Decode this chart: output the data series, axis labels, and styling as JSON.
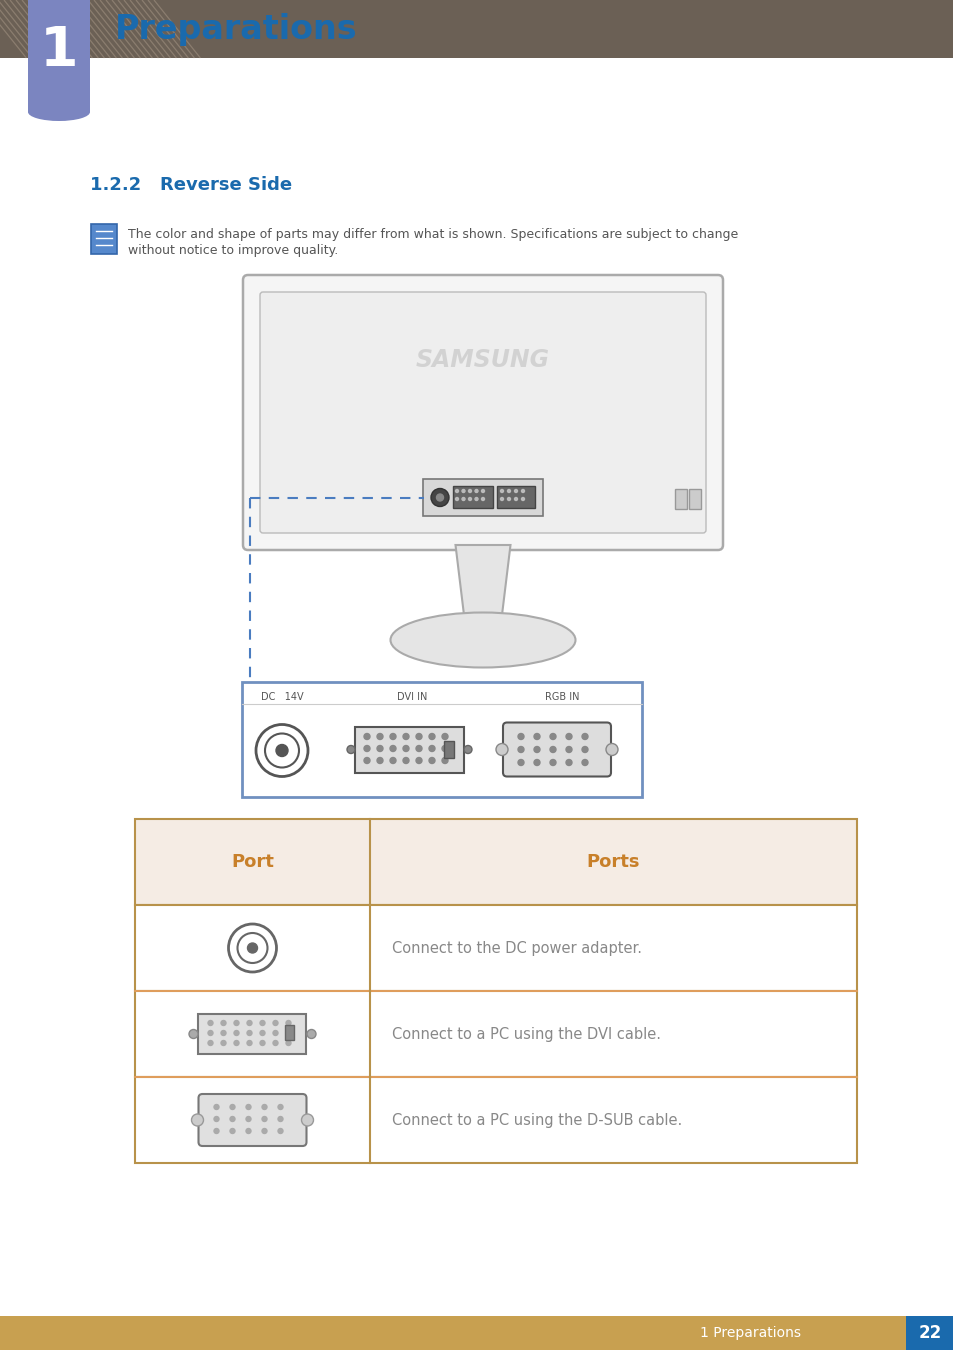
{
  "title": "Preparations",
  "chapter_num": "1",
  "section_title": "1.2.2   Reverse Side",
  "note_text_line1": "The color and shape of parts may differ from what is shown. Specifications are subject to change",
  "note_text_line2": "without notice to improve quality.",
  "table_header": [
    "Port",
    "Ports"
  ],
  "table_rows": [
    {
      "description": "Connect to the DC power adapter."
    },
    {
      "description": "Connect to a PC using the DVI cable."
    },
    {
      "description": "Connect to a PC using the D-SUB cable."
    }
  ],
  "header_bg": "#6b6055",
  "chapter_box_color": "#7b85c0",
  "section_color": "#1a6aad",
  "table_header_bg": "#f5ece4",
  "table_header_text": "#c8802a",
  "table_border_color": "#b8924a",
  "table_row_border": "#e8a060",
  "table_text_color": "#888888",
  "footer_bg": "#c8a050",
  "footer_text": "1 Preparations",
  "page_num": "22",
  "bg_color": "#ffffff",
  "monitor_color": "#f5f5f5",
  "monitor_edge": "#aaaaaa",
  "connector_box_border": "#7090c0"
}
